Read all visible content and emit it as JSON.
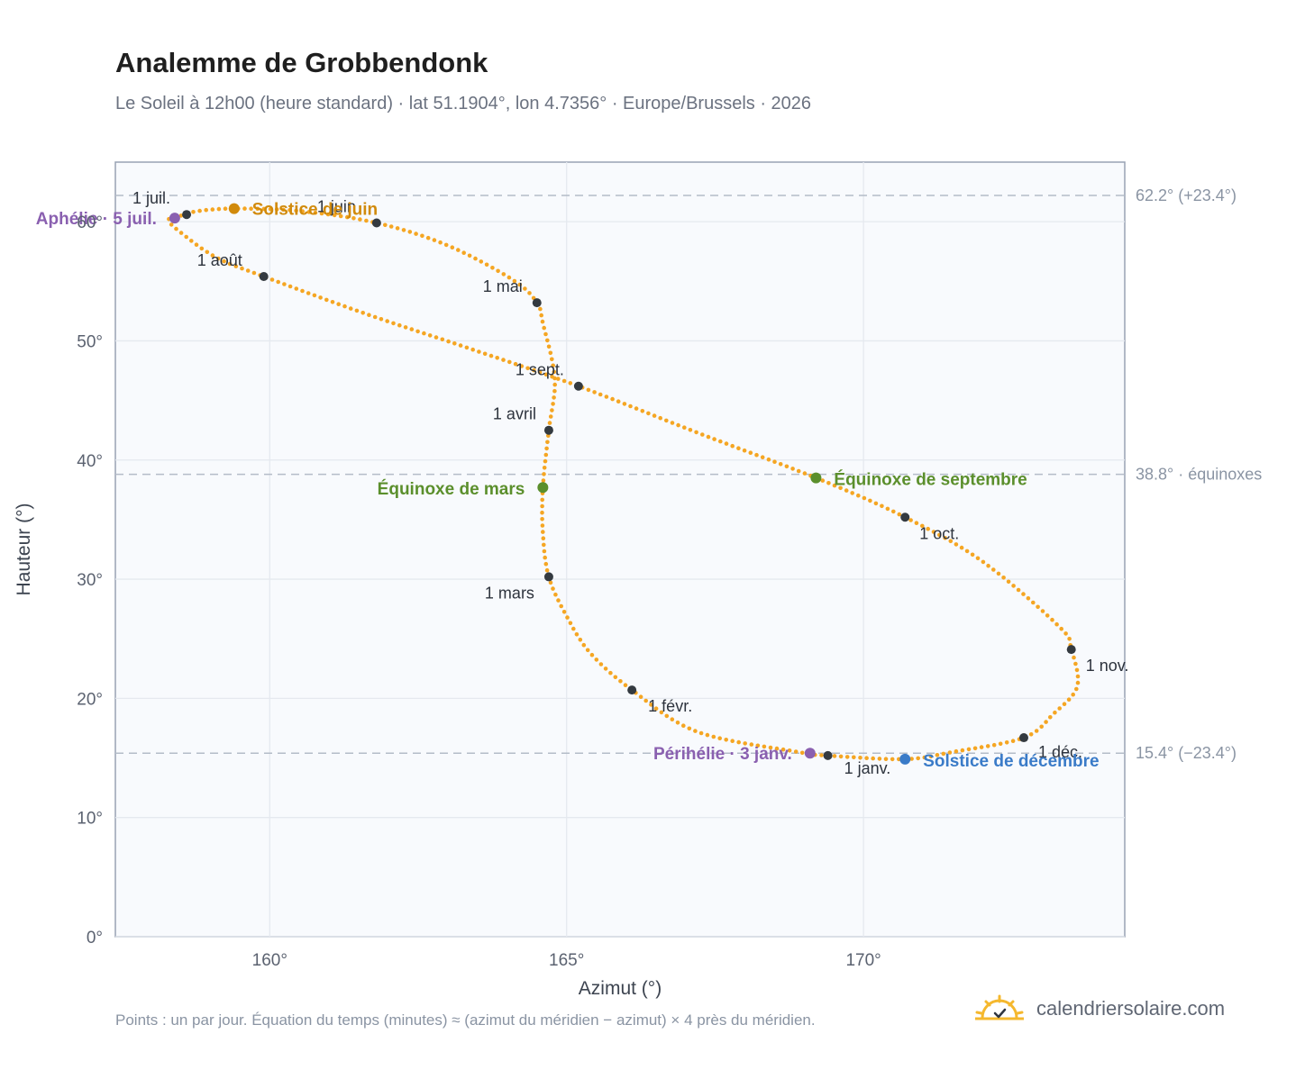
{
  "header": {
    "title": "Analemme de Grobbendonk",
    "subtitle": "Le Soleil à 12h00 (heure standard) · lat 51.1904°, lon 4.7356° · Europe/Brussels · 2026"
  },
  "footer": {
    "note": "Points : un par jour. Équation du temps (minutes) ≈ (azimut du méridien − azimut) × 4 près du méridien.",
    "brand": "calendriersolaire.com",
    "brand_icon": "sun-logo-icon"
  },
  "colors": {
    "curve": "#f5a623",
    "month_marker": "#343a40",
    "solstice_june": "#d18a0b",
    "solstice_december": "#3a7bc8",
    "equinox": "#5b8f2c",
    "apsis": "#8a60b0",
    "plot_bg": "#f8fafd",
    "reference_line": "#b4bcc8"
  },
  "chart_data": {
    "type": "scatter",
    "title": "Analemme de Grobbendonk",
    "xlabel": "Azimut (°)",
    "ylabel": "Hauteur (°)",
    "xlim": [
      157.4,
      174.4
    ],
    "ylim": [
      0,
      65
    ],
    "xticks": [
      {
        "value": 160,
        "label": "160°"
      },
      {
        "value": 165,
        "label": "165°"
      },
      {
        "value": 170,
        "label": "170°"
      }
    ],
    "yticks": [
      {
        "value": 0,
        "label": "0°"
      },
      {
        "value": 10,
        "label": "10°"
      },
      {
        "value": 20,
        "label": "20°"
      },
      {
        "value": 30,
        "label": "30°"
      },
      {
        "value": 40,
        "label": "40°"
      },
      {
        "value": 50,
        "label": "50°"
      },
      {
        "value": 60,
        "label": "60°"
      }
    ],
    "grid": true,
    "reference_lines": [
      {
        "y": 62.2,
        "label": "62.2° (+23.4°)"
      },
      {
        "y": 38.8,
        "label": "38.8° · équinoxes"
      },
      {
        "y": 15.4,
        "label": "15.4° (−23.4°)"
      }
    ],
    "series": [
      {
        "kind": "daily",
        "points": [
          [
            169.4,
            15.2
          ],
          [
            168.9,
            15.5
          ],
          [
            167.2,
            17.2
          ],
          [
            166.1,
            20.7
          ],
          [
            165.4,
            23.8
          ],
          [
            165.0,
            26.9
          ],
          [
            164.7,
            30.2
          ],
          [
            164.6,
            33.9
          ],
          [
            164.6,
            37.7
          ],
          [
            164.7,
            42.5
          ],
          [
            164.8,
            46.8
          ],
          [
            164.6,
            51.5
          ],
          [
            164.5,
            53.2
          ],
          [
            164.1,
            55.1
          ],
          [
            163.0,
            58.0
          ],
          [
            161.8,
            59.9
          ],
          [
            160.5,
            60.9
          ],
          [
            159.4,
            61.1
          ],
          [
            158.8,
            60.9
          ],
          [
            158.6,
            60.6
          ],
          [
            158.3,
            60.2
          ],
          [
            158.5,
            59.1
          ],
          [
            159.1,
            57.0
          ],
          [
            159.9,
            55.4
          ],
          [
            161.6,
            52.3
          ],
          [
            163.4,
            49.3
          ],
          [
            165.2,
            46.2
          ],
          [
            167.2,
            42.3
          ],
          [
            169.2,
            38.5
          ],
          [
            170.7,
            35.2
          ],
          [
            172.0,
            31.5
          ],
          [
            173.3,
            26.0
          ],
          [
            173.5,
            24.1
          ],
          [
            173.6,
            21.0
          ],
          [
            173.2,
            18.7
          ],
          [
            172.7,
            16.7
          ],
          [
            171.5,
            15.5
          ],
          [
            170.7,
            14.9
          ],
          [
            169.4,
            15.2
          ]
        ]
      }
    ],
    "month_markers": [
      {
        "label": "1 janv.",
        "x": 169.4,
        "y": 15.2
      },
      {
        "label": "1 févr.",
        "x": 166.1,
        "y": 20.7
      },
      {
        "label": "1 mars",
        "x": 164.7,
        "y": 30.2
      },
      {
        "label": "1 avril",
        "x": 164.7,
        "y": 42.5
      },
      {
        "label": "1 mai",
        "x": 164.5,
        "y": 53.2
      },
      {
        "label": "1 juin",
        "x": 161.8,
        "y": 59.9
      },
      {
        "label": "1 juil.",
        "x": 158.6,
        "y": 60.6
      },
      {
        "label": "1 août",
        "x": 159.9,
        "y": 55.4
      },
      {
        "label": "1 sept.",
        "x": 165.2,
        "y": 46.2
      },
      {
        "label": "1 oct.",
        "x": 170.7,
        "y": 35.2
      },
      {
        "label": "1 nov.",
        "x": 173.5,
        "y": 24.1
      },
      {
        "label": "1 déc.",
        "x": 172.7,
        "y": 16.7
      }
    ],
    "events": [
      {
        "label": "Solstice de juin",
        "x": 159.4,
        "y": 61.1,
        "color_key": "solstice_june"
      },
      {
        "label": "Solstice de décembre",
        "x": 170.7,
        "y": 14.9,
        "color_key": "solstice_december"
      },
      {
        "label": "Équinoxe de mars",
        "x": 164.6,
        "y": 37.7,
        "color_key": "equinox"
      },
      {
        "label": "Équinoxe de septembre",
        "x": 169.2,
        "y": 38.5,
        "color_key": "equinox"
      },
      {
        "label": "Aphélie · 5 juil.",
        "x": 158.4,
        "y": 60.3,
        "color_key": "apsis"
      },
      {
        "label": "Périhélie · 3 janv.",
        "x": 169.1,
        "y": 15.4,
        "color_key": "apsis"
      }
    ]
  }
}
